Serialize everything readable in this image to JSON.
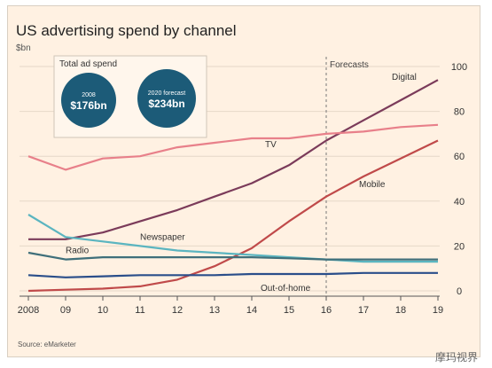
{
  "chart_data": {
    "type": "line",
    "title": "US advertising spend by channel",
    "ylabel": "$bn",
    "xlabel": "",
    "x": [
      2008,
      2009,
      2010,
      2011,
      2012,
      2013,
      2014,
      2015,
      2016,
      2017,
      2018,
      2019
    ],
    "x_tick_labels": [
      "2008",
      "09",
      "10",
      "11",
      "12",
      "13",
      "14",
      "15",
      "16",
      "17",
      "18",
      "19"
    ],
    "ylim": [
      0,
      100
    ],
    "y_ticks": [
      0,
      20,
      40,
      60,
      80,
      100
    ],
    "y_axis_side": "right",
    "grid": true,
    "forecast_label": "Forecasts",
    "forecast_start": 2016,
    "series": [
      {
        "name": "Digital",
        "color": "#7b3b5a",
        "values": [
          23,
          23,
          26,
          31,
          36,
          42,
          48,
          56,
          67,
          76,
          85,
          94
        ]
      },
      {
        "name": "TV",
        "color": "#e8808a",
        "values": [
          60,
          54,
          59,
          60,
          64,
          66,
          68,
          68,
          70,
          71,
          73,
          74
        ]
      },
      {
        "name": "Mobile",
        "color": "#c04a4a",
        "values": [
          0,
          0.5,
          1,
          2,
          5,
          11,
          19,
          31,
          42,
          51,
          59,
          67
        ]
      },
      {
        "name": "Newspaper",
        "color": "#5bb5c0",
        "values": [
          34,
          24,
          22,
          20,
          18,
          17,
          16,
          15,
          14,
          13,
          13,
          13
        ]
      },
      {
        "name": "Radio",
        "color": "#3f6f7a",
        "values": [
          17,
          14,
          15,
          15,
          15,
          15,
          15,
          14.5,
          14,
          14,
          14,
          14
        ]
      },
      {
        "name": "Out-of-home",
        "color": "#2a4e8a",
        "values": [
          7,
          6,
          6.5,
          7,
          7,
          7,
          7.5,
          7.5,
          7.5,
          8,
          8,
          8
        ]
      }
    ],
    "inset": {
      "title": "Total ad spend",
      "bubbles": [
        {
          "label": "2008",
          "value": "$176bn"
        },
        {
          "label": "2020 forecast",
          "value": "$234bn"
        }
      ],
      "bubble_color": "#1c5b78"
    },
    "source": "Source: eMarketer"
  },
  "watermark": "摩玛视界"
}
